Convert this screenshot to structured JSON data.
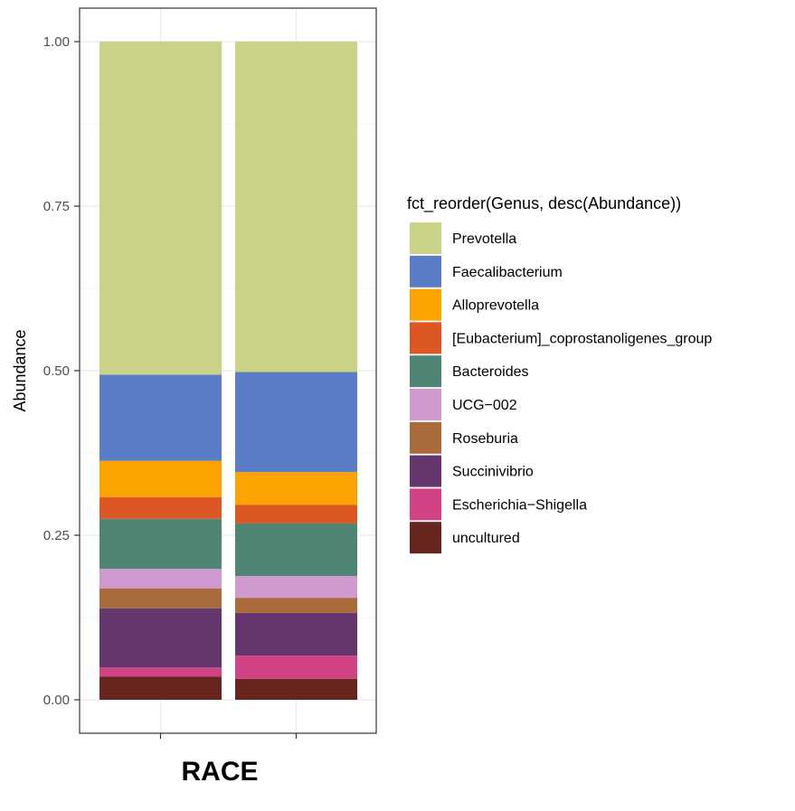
{
  "chart_data": {
    "type": "bar",
    "stacked": true,
    "categories": [
      "",
      ""
    ],
    "ylabel": "Abundance",
    "xlabel": "RACE",
    "ylim": [
      0,
      1.0
    ],
    "yticks": [
      "0.00",
      "0.25",
      "0.50",
      "0.75",
      "1.00"
    ],
    "ytick_values": [
      0,
      0.25,
      0.5,
      0.75,
      1.0
    ],
    "grid": true,
    "legend_title": "fct_reorder(Genus, desc(Abundance))",
    "legend_position": "right",
    "series": [
      {
        "name": "uncultured",
        "color": "#66261f",
        "values": [
          0.035,
          0.032
        ]
      },
      {
        "name": "Escherichia−Shigella",
        "color": "#d24385",
        "values": [
          0.014,
          0.035
        ]
      },
      {
        "name": "Succinivibrio",
        "color": "#65356d",
        "values": [
          0.09,
          0.065
        ]
      },
      {
        "name": "Roseburia",
        "color": "#aa6b3a",
        "values": [
          0.03,
          0.023
        ]
      },
      {
        "name": "UCG−002",
        "color": "#cf99cf",
        "values": [
          0.03,
          0.033
        ]
      },
      {
        "name": "Bacteroides",
        "color": "#4f8574",
        "values": [
          0.076,
          0.08
        ]
      },
      {
        "name": "[Eubacterium]_coprostanoligenes_group",
        "color": "#dc5723",
        "values": [
          0.033,
          0.028
        ]
      },
      {
        "name": "Alloprevotella",
        "color": "#fca300",
        "values": [
          0.055,
          0.05
        ]
      },
      {
        "name": "Faecalibacterium",
        "color": "#5a7dc5",
        "values": [
          0.131,
          0.152
        ]
      },
      {
        "name": "Prevotella",
        "color": "#c9d286",
        "values": [
          0.506,
          0.502
        ]
      }
    ],
    "legend_order": [
      "Prevotella",
      "Faecalibacterium",
      "Alloprevotella",
      "[Eubacterium]_coprostanoligenes_group",
      "Bacteroides",
      "UCG−002",
      "Roseburia",
      "Succinivibrio",
      "Escherichia−Shigella",
      "uncultured"
    ]
  }
}
